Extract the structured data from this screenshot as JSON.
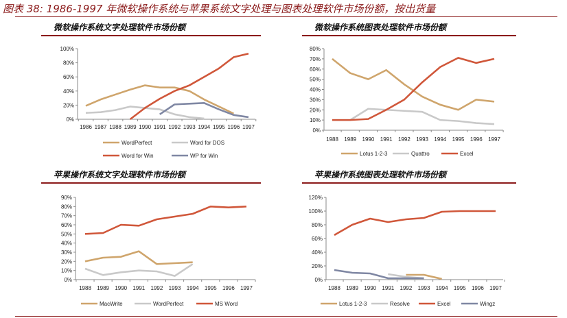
{
  "figure_title": "图表 38: 1986-1997 年微软操作系统与苹果系统文字处理与图表处理软件市场份额，按出货量",
  "colors": {
    "tan": "#CFA56C",
    "gray": "#C9C9C9",
    "red": "#D0573A",
    "navy": "#7F87A3",
    "title": "#8B1A1A"
  },
  "chart_data": [
    {
      "type": "line",
      "title": "微软操作系统文字处理软件市场份额",
      "categories": [
        "1986",
        "1987",
        "1988",
        "1989",
        "1990",
        "1991",
        "1992",
        "1993",
        "1994",
        "1995",
        "1996",
        "1997"
      ],
      "ylim": [
        0,
        100
      ],
      "yticks": [
        0,
        20,
        40,
        60,
        80,
        100
      ],
      "yformat": "%",
      "legend_position": "bottom",
      "grid": false,
      "series": [
        {
          "name": "WordPerfect",
          "color": "tan",
          "values": [
            19,
            28,
            35,
            42,
            48,
            45,
            45,
            40,
            28,
            18,
            8,
            null
          ]
        },
        {
          "name": "Word for DOS",
          "color": "gray",
          "values": [
            9,
            10,
            13,
            18,
            16,
            14,
            7,
            3,
            1,
            null,
            null,
            null
          ]
        },
        {
          "name": "Word for Win",
          "color": "red",
          "values": [
            null,
            null,
            null,
            0,
            16,
            29,
            40,
            48,
            60,
            72,
            88,
            93
          ]
        },
        {
          "name": "WP for Win",
          "color": "navy",
          "values": [
            null,
            null,
            null,
            null,
            null,
            7,
            21,
            22,
            23,
            14,
            6,
            3
          ]
        }
      ]
    },
    {
      "type": "line",
      "title": "微软操作系统图表处理软件市场份额",
      "categories": [
        "1988",
        "1989",
        "1990",
        "1991",
        "1992",
        "1993",
        "1994",
        "1995",
        "1996",
        "1997"
      ],
      "ylim": [
        0,
        80
      ],
      "yticks": [
        0,
        10,
        20,
        30,
        40,
        50,
        60,
        70,
        80
      ],
      "yformat": "%",
      "legend_position": "bottom",
      "grid": false,
      "series": [
        {
          "name": "Lotus 1-2-3",
          "color": "tan",
          "values": [
            70,
            56,
            50,
            59,
            45,
            33,
            25,
            20,
            30,
            28
          ]
        },
        {
          "name": "Quattro",
          "color": "gray",
          "values": [
            10,
            10,
            21,
            20,
            19,
            18,
            10,
            9,
            7,
            6
          ]
        },
        {
          "name": "Excel",
          "color": "red",
          "values": [
            10,
            10,
            11,
            20,
            30,
            47,
            62,
            71,
            66,
            70
          ]
        }
      ]
    },
    {
      "type": "line",
      "title": "苹果操作系统文字处理软件市场份额",
      "categories": [
        "1988",
        "1989",
        "1990",
        "1991",
        "1992",
        "1993",
        "1994",
        "1995",
        "1996",
        "1997"
      ],
      "ylim": [
        0,
        90
      ],
      "yticks": [
        0,
        10,
        20,
        30,
        40,
        50,
        60,
        70,
        80,
        90
      ],
      "yformat": "%",
      "legend_position": "bottom",
      "grid": false,
      "series": [
        {
          "name": "MacWrite",
          "color": "tan",
          "values": [
            20,
            24,
            25,
            31,
            17,
            18,
            19,
            null,
            null,
            null
          ]
        },
        {
          "name": "WordPerfect",
          "color": "gray",
          "values": [
            12,
            5,
            8,
            10,
            9,
            4,
            17,
            null,
            null,
            null
          ]
        },
        {
          "name": "MS Word",
          "color": "red",
          "values": [
            50,
            51,
            60,
            59,
            66,
            69,
            72,
            80,
            79,
            80
          ]
        }
      ]
    },
    {
      "type": "line",
      "title": "苹果操作系统图表处理软件市场份额",
      "categories": [
        "1988",
        "1989",
        "1990",
        "1991",
        "1992",
        "1993",
        "1994",
        "1995",
        "1996",
        "1997"
      ],
      "ylim": [
        0,
        120
      ],
      "yticks": [
        0,
        20,
        40,
        60,
        80,
        100,
        120
      ],
      "yformat": "%",
      "legend_position": "bottom",
      "grid": false,
      "series": [
        {
          "name": "Lotus 1-2-3",
          "color": "tan",
          "values": [
            null,
            null,
            null,
            null,
            7,
            7,
            1,
            null,
            null,
            null
          ]
        },
        {
          "name": "Resolve",
          "color": "gray",
          "values": [
            null,
            null,
            null,
            8,
            4,
            2,
            null,
            null,
            null,
            null
          ]
        },
        {
          "name": "Excel",
          "color": "red",
          "values": [
            65,
            80,
            89,
            84,
            88,
            90,
            99,
            100,
            100,
            100
          ]
        },
        {
          "name": "Wingz",
          "color": "navy",
          "values": [
            14,
            10,
            9,
            2,
            2,
            2,
            null,
            null,
            null,
            null
          ]
        }
      ]
    }
  ]
}
